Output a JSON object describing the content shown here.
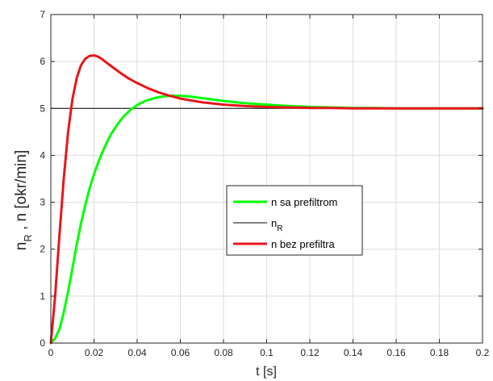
{
  "chart_data": {
    "type": "line",
    "title": "",
    "xlabel": "t [s]",
    "ylabel_main": "n",
    "ylabel_main_sub": "R",
    "ylabel_rest": " , n [okr/min]",
    "xlim": [
      0,
      0.2
    ],
    "ylim": [
      0,
      7
    ],
    "xticks": [
      0,
      0.02,
      0.04,
      0.06,
      0.08,
      0.1,
      0.12,
      0.14,
      0.16,
      0.18,
      0.2
    ],
    "xtick_labels": [
      "0",
      "0.02",
      "0.04",
      "0.06",
      "0.08",
      "0.1",
      "0.12",
      "0.14",
      "0.16",
      "0.18",
      "0.2"
    ],
    "yticks": [
      0,
      1,
      2,
      3,
      4,
      5,
      6,
      7
    ],
    "ytick_labels": [
      "0",
      "1",
      "2",
      "3",
      "4",
      "5",
      "6",
      "7"
    ],
    "grid": true,
    "legend_position": "center-right",
    "series": [
      {
        "name": "n sa prefiltrom",
        "legend_sub": "",
        "color": "#00ff00",
        "width": "thick",
        "x": [
          0,
          0.002,
          0.004,
          0.006,
          0.008,
          0.01,
          0.012,
          0.014,
          0.016,
          0.018,
          0.02,
          0.022,
          0.024,
          0.026,
          0.028,
          0.03,
          0.032,
          0.034,
          0.036,
          0.038,
          0.04,
          0.042,
          0.044,
          0.046,
          0.048,
          0.05,
          0.053,
          0.056,
          0.06,
          0.065,
          0.07,
          0.08,
          0.09,
          0.1,
          0.11,
          0.12,
          0.13,
          0.14,
          0.15,
          0.16,
          0.17,
          0.18,
          0.19,
          0.2
        ],
        "y": [
          0,
          0.1,
          0.3,
          0.65,
          1.1,
          1.6,
          2.1,
          2.55,
          2.95,
          3.3,
          3.6,
          3.85,
          4.08,
          4.28,
          4.46,
          4.6,
          4.73,
          4.84,
          4.93,
          5.01,
          5.07,
          5.12,
          5.16,
          5.19,
          5.22,
          5.24,
          5.26,
          5.27,
          5.27,
          5.25,
          5.22,
          5.16,
          5.11,
          5.08,
          5.05,
          5.03,
          5.02,
          5.01,
          5.01,
          5.0,
          5.0,
          5.0,
          5.0,
          5.0
        ]
      },
      {
        "name": "n",
        "legend_sub": "R",
        "color": "#000000",
        "width": "thin",
        "x": [
          0,
          0.2
        ],
        "y": [
          5,
          5
        ]
      },
      {
        "name": "n bez prefiltra",
        "legend_sub": "",
        "color": "#e8161b",
        "width": "thick",
        "x": [
          0,
          0.002,
          0.004,
          0.006,
          0.008,
          0.01,
          0.012,
          0.014,
          0.016,
          0.018,
          0.02,
          0.022,
          0.024,
          0.026,
          0.028,
          0.03,
          0.033,
          0.036,
          0.04,
          0.045,
          0.05,
          0.055,
          0.06,
          0.07,
          0.08,
          0.09,
          0.1,
          0.11,
          0.12,
          0.13,
          0.14,
          0.15,
          0.16,
          0.18,
          0.2
        ],
        "y": [
          0,
          1.0,
          2.3,
          3.5,
          4.5,
          5.2,
          5.65,
          5.92,
          6.06,
          6.12,
          6.13,
          6.1,
          6.04,
          5.97,
          5.9,
          5.83,
          5.73,
          5.64,
          5.54,
          5.43,
          5.34,
          5.27,
          5.21,
          5.13,
          5.08,
          5.05,
          5.03,
          5.02,
          5.01,
          5.01,
          5.0,
          5.0,
          5.0,
          5.0,
          5.0
        ]
      }
    ]
  }
}
